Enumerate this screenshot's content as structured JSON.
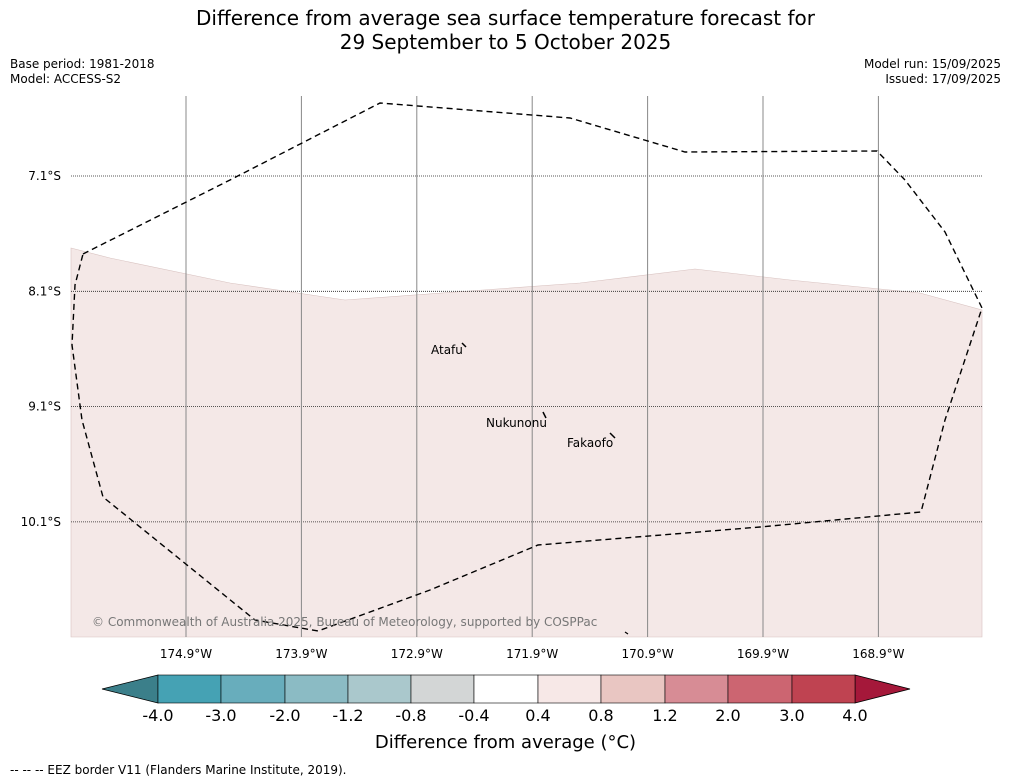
{
  "title": {
    "line1": "Difference from average sea surface temperature forecast for",
    "line2": "29 September to 5 October 2025"
  },
  "meta_left": {
    "base_period": "Base period: 1981-2018",
    "model": "Model: ACCESS-S2"
  },
  "meta_right": {
    "model_run": "Model run: 15/09/2025",
    "issued": "Issued: 17/09/2025"
  },
  "map": {
    "lon_range": [
      -175.7,
      -167.8
    ],
    "lat_range": [
      -11.1,
      -6.4
    ],
    "lat_ticks": [
      {
        "value": -7.1,
        "label": "7.1°S"
      },
      {
        "value": -8.1,
        "label": "8.1°S"
      },
      {
        "value": -9.1,
        "label": "9.1°S"
      },
      {
        "value": -10.1,
        "label": "10.1°S"
      }
    ],
    "lon_ticks": [
      {
        "value": -174.9,
        "label": "174.9°W"
      },
      {
        "value": -173.9,
        "label": "173.9°W"
      },
      {
        "value": -172.9,
        "label": "172.9°W"
      },
      {
        "value": -171.9,
        "label": "171.9°W"
      },
      {
        "value": -170.9,
        "label": "170.9°W"
      },
      {
        "value": -169.9,
        "label": "169.9°W"
      },
      {
        "value": -168.9,
        "label": "168.9°W"
      }
    ],
    "places": [
      {
        "name": "Atafu",
        "lon": -172.5,
        "lat": -8.55
      },
      {
        "name": "Nukunonu",
        "lon": -171.85,
        "lat": -9.17
      },
      {
        "name": "Fakaofo",
        "lon": -171.25,
        "lat": -9.35
      }
    ],
    "copyright": "© Commonwealth of Australia 2025, Bureau of Meteorology, supported by COSPPac",
    "anomaly_fill_color": "#f4e8e7"
  },
  "colorbar": {
    "label": "Difference from average (°C)",
    "tick_labels": [
      "-4.0",
      "-3.0",
      "-2.0",
      "-1.2",
      "-0.8",
      "-0.4",
      "0.4",
      "0.8",
      "1.2",
      "2.0",
      "3.0",
      "4.0"
    ],
    "low_extend_color": "#3b7f8a",
    "high_extend_color": "#a5183a",
    "colors": [
      "#45a2b4",
      "#68adbc",
      "#8bbbc4",
      "#aac8cc",
      "#d3d6d6",
      "#ffffff",
      "#f7e8e7",
      "#e9c6c2",
      "#d78c95",
      "#cc6571",
      "#bf4351"
    ]
  },
  "footnote": "--  --  -- EEZ border V11 (Flanders Marine Institute, 2019)."
}
